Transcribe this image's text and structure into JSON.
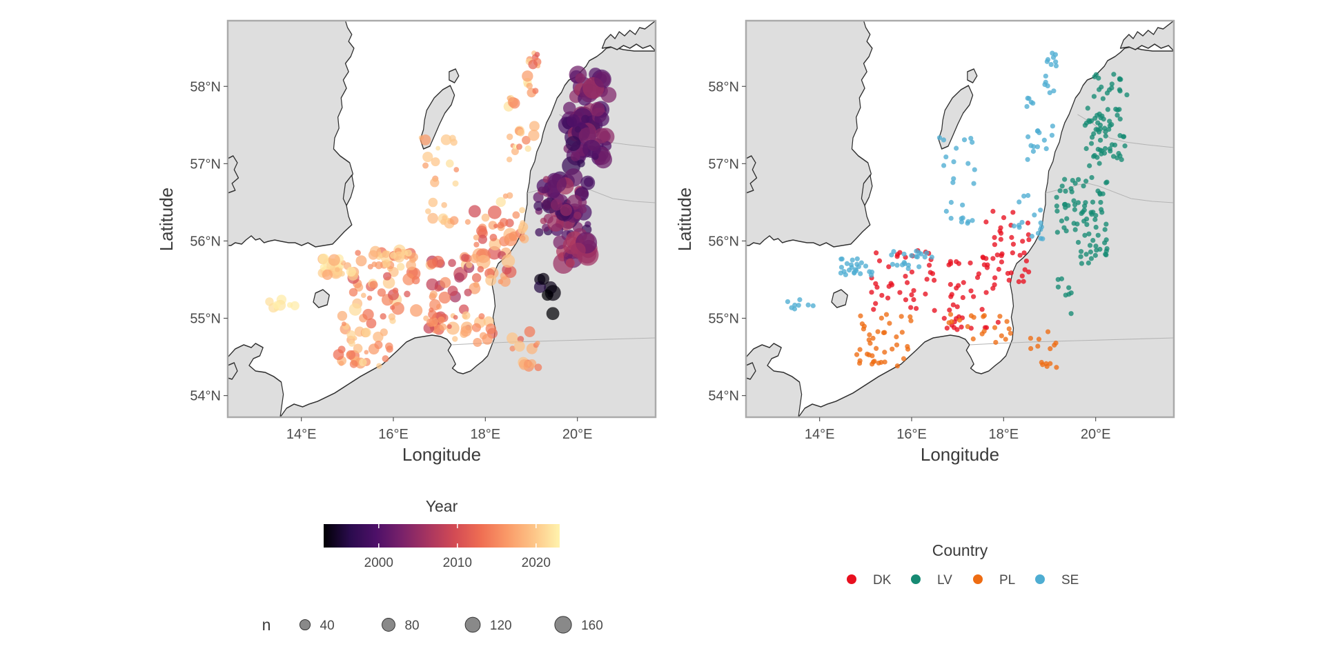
{
  "maps": [
    {
      "id": "year",
      "xlabel": "Longitude",
      "ylabel": "Latitude",
      "x_ticks": [
        "14°E",
        "16°E",
        "18°E",
        "20°E"
      ],
      "y_ticks": [
        "54°N",
        "55°N",
        "56°N",
        "57°N",
        "58°N"
      ],
      "xlim": [
        12.4,
        21.7
      ],
      "ylim": [
        53.72,
        58.85
      ],
      "colour_by": "Year",
      "size_by": "n"
    },
    {
      "id": "country",
      "xlabel": "Longitude",
      "ylabel": "Latitude",
      "x_ticks": [
        "14°E",
        "16°E",
        "18°E",
        "20°E"
      ],
      "y_ticks": [
        "54°N",
        "55°N",
        "56°N",
        "57°N",
        "58°N"
      ],
      "xlim": [
        12.4,
        21.7
      ],
      "ylim": [
        53.72,
        58.85
      ],
      "colour_by": "Country"
    }
  ],
  "legends": {
    "year": {
      "title": "Year",
      "range": [
        1993,
        2023
      ],
      "labels": [
        "2000",
        "2010",
        "2020"
      ],
      "label_values": [
        2000,
        2010,
        2020
      ],
      "palette": [
        "#000004",
        "#1b0c41",
        "#4a0c6b",
        "#781c6d",
        "#a52c60",
        "#cf4446",
        "#ed6925",
        "#fb9b06",
        "#f7d13d",
        "#fcffa4"
      ],
      "palette_shown": [
        "#000004",
        "#2a0b4d",
        "#4d1068",
        "#7a226a",
        "#a83560",
        "#d34b54",
        "#ef6e53",
        "#fa9a68",
        "#fdc487",
        "#fff3ad"
      ]
    },
    "n": {
      "title": "n",
      "labels": [
        "40",
        "80",
        "120",
        "160"
      ],
      "values": [
        40,
        80,
        120,
        160
      ]
    },
    "country": {
      "title": "Country",
      "items": [
        {
          "label": "DK",
          "color": "#e8101f"
        },
        {
          "label": "LV",
          "color": "#168a73"
        },
        {
          "label": "PL",
          "color": "#ee6c12"
        },
        {
          "label": "SE",
          "color": "#4eadd2"
        }
      ]
    }
  }
}
